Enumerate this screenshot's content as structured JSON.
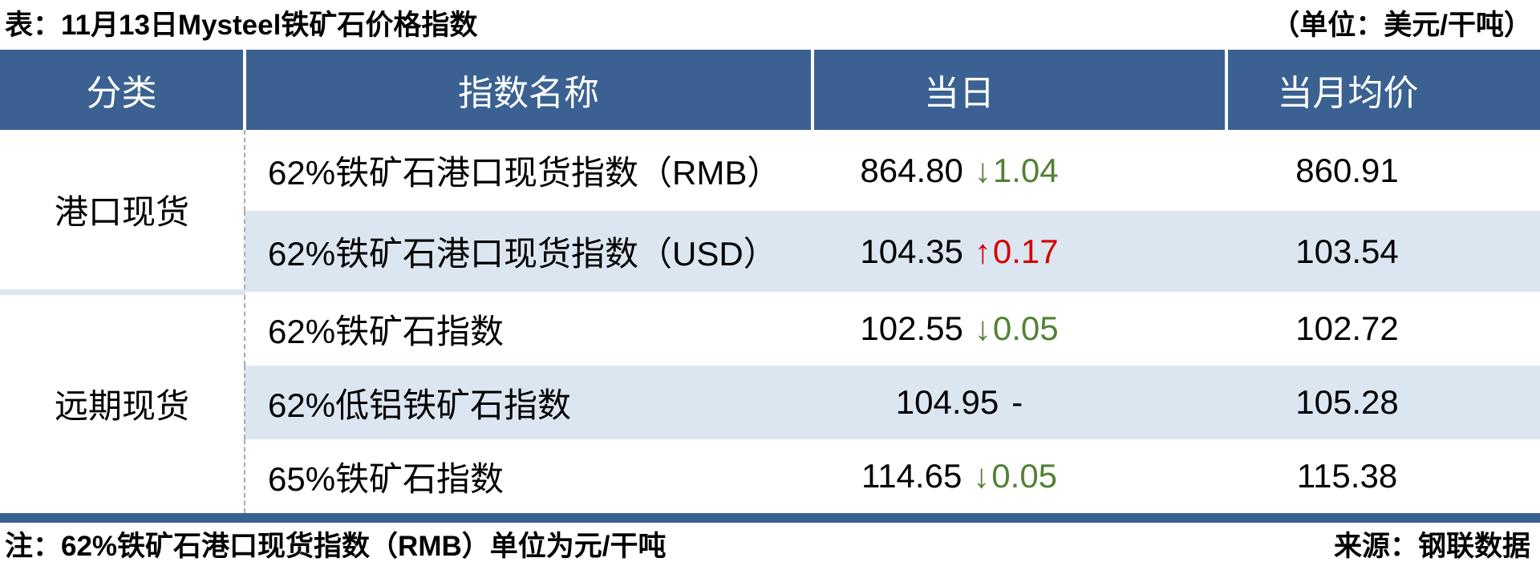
{
  "chart_data": {
    "type": "table",
    "title": "表：11月13日Mysteel铁矿石价格指数",
    "unit_label": "（单位：美元/干吨）",
    "columns": [
      "分类",
      "指数名称",
      "当日",
      "当月均价"
    ],
    "groups": [
      {
        "category": "港口现货",
        "row_count": 2
      },
      {
        "category": "远期现货",
        "row_count": 3
      }
    ],
    "rows": [
      {
        "name": "62%铁矿石港口现货指数（RMB）",
        "daily": "864.80",
        "change": "-1.04",
        "arrow": "↓",
        "change_value": "1.04",
        "change_color": "#538135",
        "monthly": "860.91"
      },
      {
        "name": "62%铁矿石港口现货指数（USD）",
        "daily": "104.35",
        "change": "+0.17",
        "arrow": "↑",
        "change_value": "0.17",
        "change_color": "#D40000",
        "monthly": "103.54"
      },
      {
        "name": "62%铁矿石指数",
        "daily": "102.55",
        "change": "-0.05",
        "arrow": "↓",
        "change_value": "0.05",
        "change_color": "#538135",
        "monthly": "102.72"
      },
      {
        "name": "62%低铝铁矿石指数",
        "daily": "104.95",
        "change": "0",
        "arrow": "",
        "change_value": "-",
        "change_color": "#000000",
        "monthly": "105.28"
      },
      {
        "name": "65%铁矿石指数",
        "daily": "114.65",
        "change": "-0.05",
        "arrow": "↓",
        "change_value": "0.05",
        "change_color": "#538135",
        "monthly": "115.38"
      }
    ],
    "note": "注：62%铁矿石港口现货指数（RMB）单位为元/干吨",
    "source": "来源：钢联数据"
  },
  "colors": {
    "header_bg": "#3A6191",
    "stripe_bg": "#DCE6F1",
    "down_green": "#538135",
    "up_red": "#D40000",
    "divider_dash": "#ABABAB",
    "bottom_bar": "#3A6191"
  }
}
